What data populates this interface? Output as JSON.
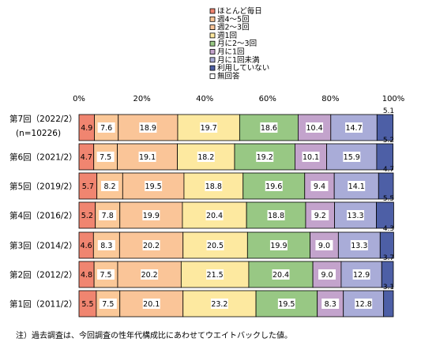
{
  "chart_data": {
    "type": "bar",
    "orientation": "horizontal",
    "stacked": true,
    "percent_stacked": true,
    "categories": [
      [
        "第7回（2022/2）",
        "(n=10226)"
      ],
      [
        "第6回（2021/2）"
      ],
      [
        "第5回（2019/2）"
      ],
      [
        "第4回（2016/2）"
      ],
      [
        "第3回（2014/2）"
      ],
      [
        "第2回（2012/2）"
      ],
      [
        "第1回（2011/2）"
      ]
    ],
    "series": [
      {
        "name": "ほとんど毎日",
        "color": "#F08570",
        "values": [
          4.9,
          4.7,
          5.7,
          5.2,
          4.6,
          4.8,
          5.5
        ]
      },
      {
        "name": "週4～5回",
        "color": "#FBC898",
        "values": [
          7.6,
          7.5,
          8.2,
          7.8,
          8.3,
          7.5,
          7.5
        ]
      },
      {
        "name": "週2～3回",
        "color": "#FAC598",
        "values": [
          18.9,
          19.1,
          19.5,
          19.9,
          20.2,
          20.2,
          20.1
        ]
      },
      {
        "name": "週1回",
        "color": "#FDE9A0",
        "values": [
          19.7,
          18.2,
          18.8,
          20.4,
          20.5,
          21.5,
          23.2
        ]
      },
      {
        "name": "月に2～3回",
        "color": "#98C884",
        "values": [
          18.6,
          19.2,
          19.6,
          18.8,
          19.9,
          20.4,
          19.5
        ]
      },
      {
        "name": "月に1回",
        "color": "#C3A3CC",
        "values": [
          10.4,
          10.1,
          9.4,
          9.2,
          9.0,
          9.0,
          8.3
        ]
      },
      {
        "name": "月に1回未満",
        "color": "#A9ACD8",
        "values": [
          14.7,
          15.9,
          14.1,
          13.3,
          13.3,
          12.9,
          12.8
        ]
      },
      {
        "name": "利用していない",
        "color": "#4D5FA6",
        "values": [
          5.1,
          5.2,
          4.7,
          5.5,
          4.3,
          3.7,
          3.1
        ]
      },
      {
        "name": "無回答",
        "color": "#FFFFFF",
        "values": [
          0,
          0,
          0,
          0,
          0,
          0,
          0
        ]
      }
    ],
    "data_labels": [
      [
        "4.9",
        "7.6",
        "18.9",
        "19.7",
        "18.6",
        "10.4",
        "14.7",
        "5.1"
      ],
      [
        "4.7",
        "7.5",
        "19.1",
        "18.2",
        "19.2",
        "10.1",
        "15.9",
        "5.2"
      ],
      [
        "5.7",
        "8.2",
        "19.5",
        "18.8",
        "19.6",
        "9.4",
        "14.1",
        "4.7"
      ],
      [
        "5.2",
        "7.8",
        "19.9",
        "20.4",
        "18.8",
        "9.2",
        "13.3",
        "5.5"
      ],
      [
        "4.6",
        "8.3",
        "20.2",
        "20.5",
        "19.9",
        "9.0",
        "13.3",
        "4.3"
      ],
      [
        "4.8",
        "7.5",
        "20.2",
        "21.5",
        "20.4",
        "9.0",
        "12.9",
        "3.7"
      ],
      [
        "5.5",
        "7.5",
        "20.1",
        "23.2",
        "19.5",
        "8.3",
        "12.8",
        "3.1"
      ]
    ],
    "x_ticks": [
      "0%",
      "20%",
      "40%",
      "60%",
      "80%",
      "100%"
    ],
    "xlim": [
      0,
      100
    ],
    "legend_position": "top-center",
    "grid": false
  },
  "footnote": "注）過去調査は、今回調査の性年代構成比にあわせてウエイトバックした値。"
}
